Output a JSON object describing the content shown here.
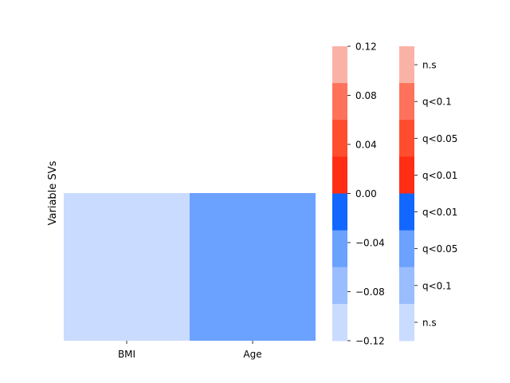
{
  "chart_data": {
    "type": "heatmap",
    "ylabel": "Variable SVs",
    "xlabel": "",
    "x_categories": [
      "BMI",
      "Age"
    ],
    "rows": 1,
    "cells": [
      {
        "x": "BMI",
        "value": -0.1,
        "color": "#c9dbff"
      },
      {
        "x": "Age",
        "value": -0.05,
        "color": "#6ba1ff"
      }
    ],
    "colorbar_value": {
      "vmin": -0.12,
      "vmax": 0.12,
      "ticks": [
        {
          "value": 0.12,
          "label": "0.12"
        },
        {
          "value": 0.08,
          "label": "0.08"
        },
        {
          "value": 0.04,
          "label": "0.04"
        },
        {
          "value": 0.0,
          "label": "0.00"
        },
        {
          "value": -0.04,
          "label": "−0.04"
        },
        {
          "value": -0.08,
          "label": "−0.08"
        },
        {
          "value": -0.12,
          "label": "−0.12"
        }
      ],
      "bins": [
        {
          "from": 0.09,
          "to": 0.12,
          "color": "#fbb2a6"
        },
        {
          "from": 0.06,
          "to": 0.09,
          "color": "#fe725b"
        },
        {
          "from": 0.03,
          "to": 0.06,
          "color": "#ff4d2e"
        },
        {
          "from": 0.0,
          "to": 0.03,
          "color": "#ff2d14"
        },
        {
          "from": -0.03,
          "to": 0.0,
          "color": "#1167ff"
        },
        {
          "from": -0.06,
          "to": -0.03,
          "color": "#6ba1ff"
        },
        {
          "from": -0.09,
          "to": -0.06,
          "color": "#99bdff"
        },
        {
          "from": -0.12,
          "to": -0.09,
          "color": "#c9dbff"
        }
      ]
    },
    "colorbar_significance": {
      "labels": [
        "n.s",
        "q<0.1",
        "q<0.05",
        "q<0.01",
        "q<0.01",
        "q<0.05",
        "q<0.1",
        "n.s"
      ],
      "colors": [
        "#fbb2a6",
        "#fe725b",
        "#ff4d2e",
        "#ff2d14",
        "#1167ff",
        "#6ba1ff",
        "#99bdff",
        "#c9dbff"
      ]
    }
  }
}
